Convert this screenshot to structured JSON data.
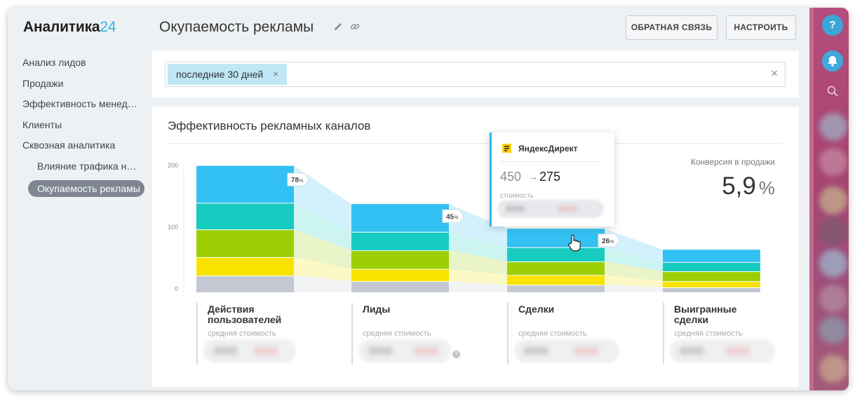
{
  "app": {
    "logo_main": "Аналитика",
    "logo_accent": "24"
  },
  "sidebar": {
    "items": [
      {
        "label": "Анализ лидов"
      },
      {
        "label": "Продажи"
      },
      {
        "label": "Эффективность менеджеров"
      },
      {
        "label": "Клиенты"
      },
      {
        "label": "Сквозная аналитика"
      }
    ],
    "sub_items": [
      {
        "label": "Влияние трафика на продажи"
      }
    ],
    "active_item": {
      "label": "Окупаемость рекламы"
    }
  },
  "header": {
    "title": "Окупаемость рекламы",
    "feedback_label": "ОБРАТНАЯ СВЯЗЬ",
    "settings_label": "НАСТРОИТЬ"
  },
  "filter": {
    "chip_label": "последние 30 дней",
    "chip_remove": "×",
    "clear": "×"
  },
  "panel": {
    "title": "Эффективность рекламных каналов",
    "conversion_label": "Конверсия в продажи",
    "conversion_value": "5,9",
    "conversion_unit": "%"
  },
  "tooltip": {
    "source": "ЯндексДирект",
    "from_value": "450",
    "arrow": "→",
    "to_value": "275",
    "cost_label": "стоимость"
  },
  "stages": [
    {
      "name": "Действия пользователей",
      "cost_label": "средняя стоимость"
    },
    {
      "name": "Лиды",
      "cost_label": "средняя стоимость",
      "help": "?"
    },
    {
      "name": "Сделки",
      "cost_label": "средняя стоимость"
    },
    {
      "name": "Выигранные сделки",
      "cost_label": "средняя стоимость"
    }
  ],
  "rightbar": {
    "help_label": "?"
  },
  "colors": {
    "blue": "#33c0f2",
    "teal": "#18cbc0",
    "green": "#9bcf03",
    "yellow": "#f7e200",
    "gray": "#c3c8d2",
    "accent": "#29b6e8"
  },
  "chart_data": {
    "type": "bar",
    "stacked": true,
    "categories": [
      "Действия пользователей",
      "Лиды",
      "Сделки",
      "Выигранные сделки"
    ],
    "yticks": [
      0,
      100,
      200
    ],
    "ylim": [
      0,
      200
    ],
    "grid": false,
    "series": [
      {
        "color": "#c3c8d2",
        "values": [
          27,
          18,
          12,
          8
        ]
      },
      {
        "color": "#f7e200",
        "values": [
          30,
          20,
          16,
          10
        ]
      },
      {
        "color": "#9bcf03",
        "values": [
          45,
          30,
          22,
          16
        ]
      },
      {
        "color": "#18cbc0",
        "values": [
          43,
          30,
          23,
          15
        ]
      },
      {
        "color": "#33c0f2",
        "values": [
          60,
          45,
          30,
          20
        ]
      }
    ],
    "conversion_labels": [
      {
        "value": "78",
        "unit": "%"
      },
      {
        "value": "45",
        "unit": "%"
      },
      {
        "value": "26",
        "unit": "%"
      }
    ]
  }
}
